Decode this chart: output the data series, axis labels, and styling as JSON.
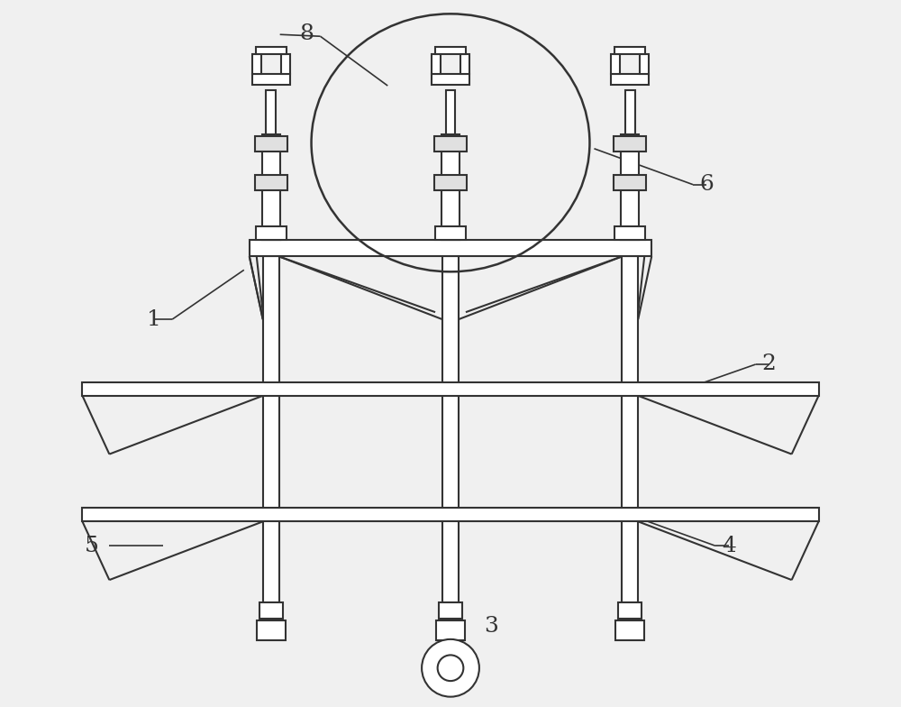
{
  "bg_color": "#f0f0f0",
  "line_color": "#333333",
  "lw": 1.5,
  "fig_width": 10.0,
  "fig_height": 7.84,
  "label_fontsize": 18
}
